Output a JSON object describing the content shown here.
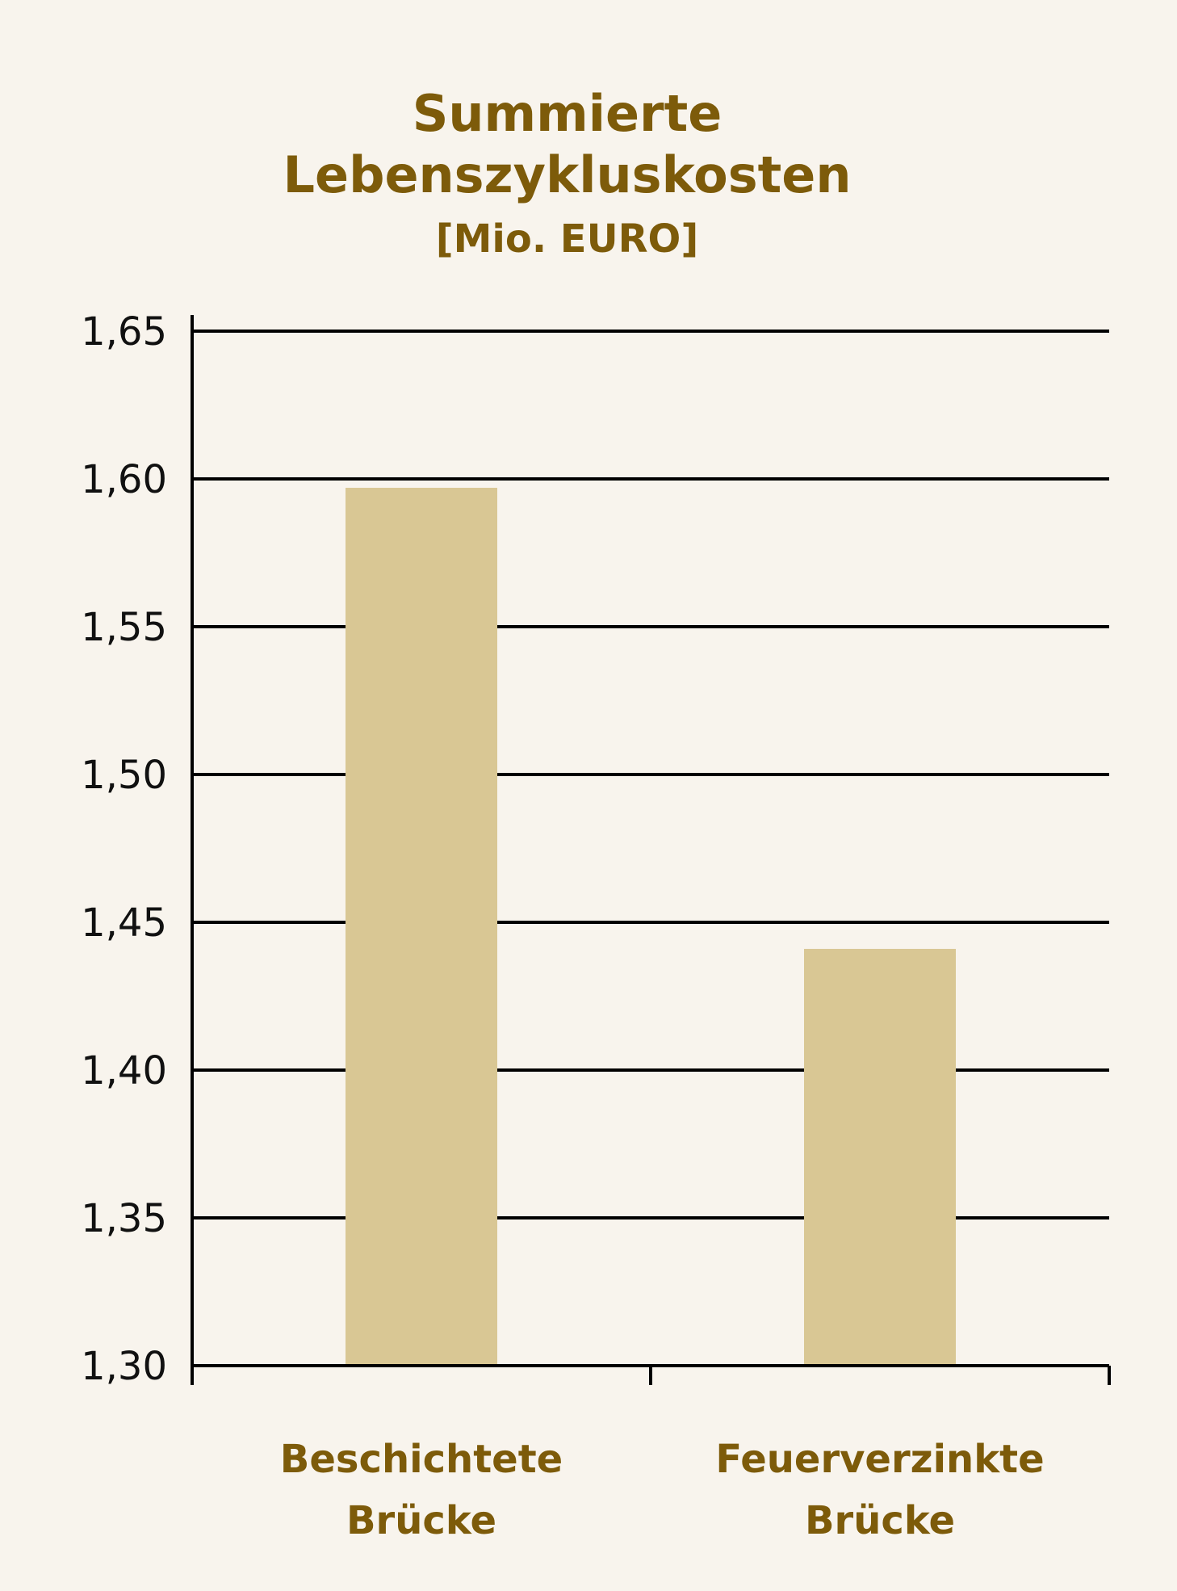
{
  "colors": {
    "background": "#f8f4ed",
    "bar": "#d9c794",
    "title": "#7d5b0a",
    "axis": "#000000"
  },
  "chart_data": {
    "type": "bar",
    "title": [
      "Summierte",
      "Lebenszykluskosten"
    ],
    "ylabel": "[Mio. EURO]",
    "xlabel": "",
    "categories": [
      [
        "Beschichtete",
        "Brücke"
      ],
      [
        "Feuerverzinkte",
        "Brücke"
      ]
    ],
    "values": [
      1.597,
      1.441
    ],
    "ylim": [
      1.3,
      1.65
    ],
    "yticks": [
      1.3,
      1.35,
      1.4,
      1.45,
      1.5,
      1.55,
      1.6,
      1.65
    ],
    "ytick_labels": [
      "1,30",
      "1,35",
      "1,40",
      "1,45",
      "1,50",
      "1,55",
      "1,60",
      "1,65"
    ],
    "grid": true,
    "legend": "none"
  }
}
